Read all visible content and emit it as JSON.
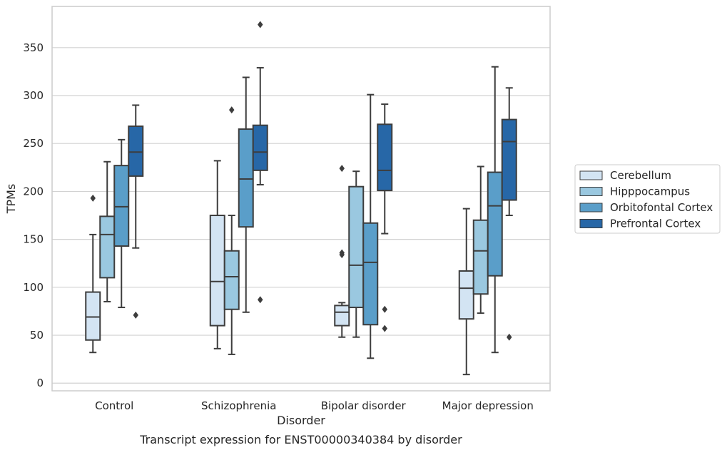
{
  "caption": "Transcript expression for ENST00000340384 by disorder",
  "chart_data": {
    "type": "box",
    "xlabel": "Disorder",
    "ylabel": "TPMs",
    "ylim": [
      -8,
      393
    ],
    "yticks": [
      0,
      50,
      100,
      150,
      200,
      250,
      300,
      350
    ],
    "grid": "horizontal",
    "legend_position": "right",
    "categories": [
      "Control",
      "Schizophrenia",
      "Bipolar disorder",
      "Major depression"
    ],
    "series": [
      {
        "name": "Cerebellum",
        "color": "#d3e4f3",
        "boxes": [
          {
            "whislo": 32,
            "q1": 45,
            "med": 69,
            "q3": 95,
            "whishi": 155,
            "fliers": [
              193
            ]
          },
          {
            "whislo": 36,
            "q1": 60,
            "med": 106,
            "q3": 175,
            "whishi": 232,
            "fliers": []
          },
          {
            "whislo": 48,
            "q1": 60,
            "med": 74,
            "q3": 81,
            "whishi": 84,
            "fliers": [
              134,
              136,
              224
            ]
          },
          {
            "whislo": 9,
            "q1": 67,
            "med": 99,
            "q3": 117,
            "whishi": 182,
            "fliers": []
          }
        ]
      },
      {
        "name": "Hipppocampus",
        "color": "#9ac8e0",
        "boxes": [
          {
            "whislo": 85,
            "q1": 110,
            "med": 155,
            "q3": 174,
            "whishi": 231,
            "fliers": []
          },
          {
            "whislo": 30,
            "q1": 77,
            "med": 111,
            "q3": 138,
            "whishi": 175,
            "fliers": [
              285
            ]
          },
          {
            "whislo": 48,
            "q1": 79,
            "med": 123,
            "q3": 205,
            "whishi": 221,
            "fliers": []
          },
          {
            "whislo": 73,
            "q1": 93,
            "med": 138,
            "q3": 170,
            "whishi": 226,
            "fliers": []
          }
        ]
      },
      {
        "name": "Orbitofontal Cortex",
        "color": "#5a9ec9",
        "boxes": [
          {
            "whislo": 79,
            "q1": 143,
            "med": 184,
            "q3": 227,
            "whishi": 254,
            "fliers": []
          },
          {
            "whislo": 74,
            "q1": 163,
            "med": 213,
            "q3": 265,
            "whishi": 319,
            "fliers": []
          },
          {
            "whislo": 26,
            "q1": 61,
            "med": 126,
            "q3": 167,
            "whishi": 301,
            "fliers": []
          },
          {
            "whislo": 32,
            "q1": 112,
            "med": 185,
            "q3": 220,
            "whishi": 330,
            "fliers": []
          }
        ]
      },
      {
        "name": "Prefrontal Cortex",
        "color": "#2767a7",
        "boxes": [
          {
            "whislo": 141,
            "q1": 216,
            "med": 241,
            "q3": 268,
            "whishi": 290,
            "fliers": [
              71
            ]
          },
          {
            "whislo": 207,
            "q1": 222,
            "med": 241,
            "q3": 269,
            "whishi": 329,
            "fliers": [
              87,
              374
            ]
          },
          {
            "whislo": 156,
            "q1": 201,
            "med": 222,
            "q3": 270,
            "whishi": 291,
            "fliers": [
              57,
              77
            ]
          },
          {
            "whislo": 175,
            "q1": 191,
            "med": 252,
            "q3": 275,
            "whishi": 308,
            "fliers": [
              48
            ]
          }
        ]
      }
    ]
  }
}
